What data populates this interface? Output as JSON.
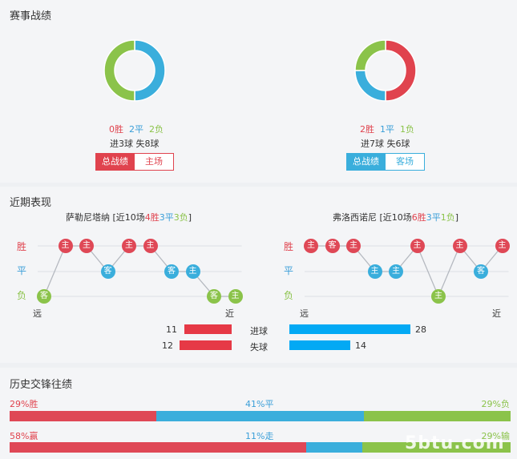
{
  "record": {
    "title": "赛事战绩",
    "home": {
      "stats": {
        "w": "0胜",
        "d": "2平",
        "l": "2负"
      },
      "goals": "进3球  失8球",
      "chart": {
        "win": 0,
        "draw": 2,
        "loss": 2
      },
      "btn_total": "总战绩",
      "btn_venue": "主场"
    },
    "away": {
      "stats": {
        "w": "2胜",
        "d": "1平",
        "l": "1负"
      },
      "goals": "进7球  失6球",
      "chart": {
        "win": 2,
        "draw": 1,
        "loss": 1
      },
      "btn_total": "总战绩",
      "btn_venue": "客场"
    },
    "colors": {
      "win": "#e0434e",
      "draw": "#3aaedc",
      "loss": "#8bc34a"
    }
  },
  "recent": {
    "title": "近期表现",
    "team1": {
      "name": "萨勒尼塔纳",
      "pre": " [近10场",
      "w": "4胜",
      "d": "3平",
      "l": "3负",
      "post": "]"
    },
    "team2": {
      "name": "弗洛西诺尼",
      "pre": " [近10场",
      "w": "6胜",
      "d": "3平",
      "l": "1负",
      "post": "]"
    },
    "ylabels": {
      "w": "胜",
      "d": "平",
      "l": "负"
    },
    "far": "远",
    "near": "近",
    "series1": [
      {
        "r": "l",
        "v": "客"
      },
      {
        "r": "w",
        "v": "主"
      },
      {
        "r": "w",
        "v": "主"
      },
      {
        "r": "d",
        "v": "客"
      },
      {
        "r": "w",
        "v": "主"
      },
      {
        "r": "w",
        "v": "主"
      },
      {
        "r": "d",
        "v": "客"
      },
      {
        "r": "d",
        "v": "主"
      },
      {
        "r": "l",
        "v": "客"
      },
      {
        "r": "l",
        "v": "主"
      }
    ],
    "series2": [
      {
        "r": "w",
        "v": "主"
      },
      {
        "r": "w",
        "v": "客"
      },
      {
        "r": "w",
        "v": "主"
      },
      {
        "r": "d",
        "v": "主"
      },
      {
        "r": "d",
        "v": "主"
      },
      {
        "r": "w",
        "v": "主"
      },
      {
        "r": "l",
        "v": "主"
      },
      {
        "r": "w",
        "v": "主"
      },
      {
        "r": "d",
        "v": "客"
      },
      {
        "r": "w",
        "v": "主"
      }
    ],
    "goals": {
      "label": "进球",
      "left": 11,
      "right": 28
    },
    "conceded": {
      "label": "失球",
      "left": 12,
      "right": 14
    }
  },
  "history": {
    "title": "历史交锋往绩",
    "row1": {
      "win": "29%胜",
      "draw": "41%平",
      "loss": "29%负",
      "p": [
        29,
        41,
        29
      ]
    },
    "row2": {
      "win": "58%赢",
      "draw": "11%走",
      "loss": "29%输",
      "p": [
        58,
        11,
        29
      ]
    },
    "watermark": "5btu.com"
  }
}
